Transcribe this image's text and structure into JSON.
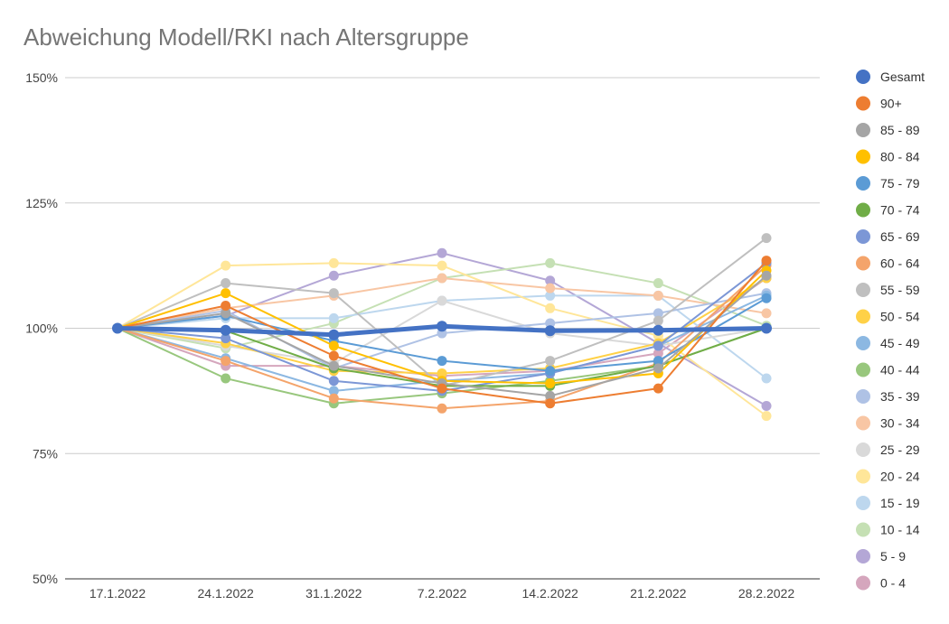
{
  "chart_data": {
    "type": "line",
    "title": "Abweichung Modell/RKI nach Altersgruppe",
    "xlabel": "",
    "ylabel": "",
    "categories": [
      "17.1.2022",
      "24.1.2022",
      "31.1.2022",
      "7.2.2022",
      "14.2.2022",
      "21.2.2022",
      "28.2.2022"
    ],
    "ylim": [
      50,
      150
    ],
    "yticks": [
      "50%",
      "75%",
      "100%",
      "125%",
      "150%"
    ],
    "grid": true,
    "legend_position": "right",
    "series": [
      {
        "name": "Gesamt",
        "color": "#4472C4",
        "values": [
          100,
          99.6,
          98.7,
          100.4,
          99.5,
          99.6,
          100
        ],
        "highlight": true
      },
      {
        "name": "90+",
        "color": "#ED7D31",
        "values": [
          100,
          104.5,
          94.5,
          88.0,
          85.0,
          88.0,
          113.5
        ]
      },
      {
        "name": "85 - 89",
        "color": "#A5A5A5",
        "values": [
          100,
          103.0,
          92.5,
          89.0,
          86.5,
          92.0,
          110.5
        ]
      },
      {
        "name": "80 - 84",
        "color": "#FFC000",
        "values": [
          100,
          107.0,
          96.5,
          89.5,
          89.0,
          91.0,
          111.5
        ]
      },
      {
        "name": "75 - 79",
        "color": "#5B9BD5",
        "values": [
          100,
          102.5,
          97.5,
          93.5,
          91.5,
          93.5,
          106.0
        ]
      },
      {
        "name": "70 - 74",
        "color": "#70AD47",
        "values": [
          100,
          99.5,
          92.0,
          88.5,
          88.5,
          92.5,
          100.0
        ]
      },
      {
        "name": "65 - 69",
        "color": "#7C97D6",
        "values": [
          100,
          98.0,
          89.5,
          87.5,
          91.0,
          96.5,
          113.0
        ]
      },
      {
        "name": "60 - 64",
        "color": "#F4A46B",
        "values": [
          100,
          93.5,
          86.0,
          84.0,
          85.5,
          93.0,
          112.5
        ]
      },
      {
        "name": "55 - 59",
        "color": "#BFBFBF",
        "values": [
          100,
          109.0,
          107.0,
          88.5,
          93.5,
          101.5,
          118.0
        ]
      },
      {
        "name": "50 - 54",
        "color": "#FFD147",
        "values": [
          100,
          97.0,
          91.5,
          91.0,
          92.0,
          97.0,
          110.0
        ]
      },
      {
        "name": "45 - 49",
        "color": "#8CB8E2",
        "values": [
          100,
          94.0,
          87.5,
          89.5,
          91.0,
          96.5,
          106.5
        ]
      },
      {
        "name": "40 - 44",
        "color": "#98C77D",
        "values": [
          100,
          90.0,
          85.0,
          87.0,
          89.5,
          92.5,
          100.0
        ]
      },
      {
        "name": "35 - 39",
        "color": "#AFC2E5",
        "values": [
          100,
          103.5,
          92.0,
          99.0,
          101.0,
          103.0,
          107.0
        ]
      },
      {
        "name": "30 - 34",
        "color": "#F8C6A4",
        "values": [
          100,
          104.0,
          106.5,
          110.0,
          108.0,
          106.5,
          103.0
        ]
      },
      {
        "name": "25 - 29",
        "color": "#D9D9D9",
        "values": [
          100,
          96.5,
          93.0,
          105.5,
          99.0,
          96.5,
          100.0
        ]
      },
      {
        "name": "20 - 24",
        "color": "#FFE699",
        "values": [
          100,
          112.5,
          113.0,
          112.5,
          104.0,
          98.5,
          82.5
        ]
      },
      {
        "name": "15 - 19",
        "color": "#BDD7EE",
        "values": [
          100,
          102.0,
          102.0,
          105.5,
          106.5,
          106.5,
          90.0
        ]
      },
      {
        "name": "10 - 14",
        "color": "#C5E0B4",
        "values": [
          100,
          96.0,
          101.0,
          110.0,
          113.0,
          109.0,
          100.5
        ]
      },
      {
        "name": "5 - 9",
        "color": "#B4A7D6",
        "values": [
          100,
          102.5,
          110.5,
          115.0,
          109.5,
          97.0,
          84.5
        ]
      },
      {
        "name": "0 - 4",
        "color": "#D5A6BD",
        "values": [
          100,
          92.5,
          92.5,
          90.5,
          91.5,
          95.0,
          110.0
        ]
      }
    ]
  }
}
